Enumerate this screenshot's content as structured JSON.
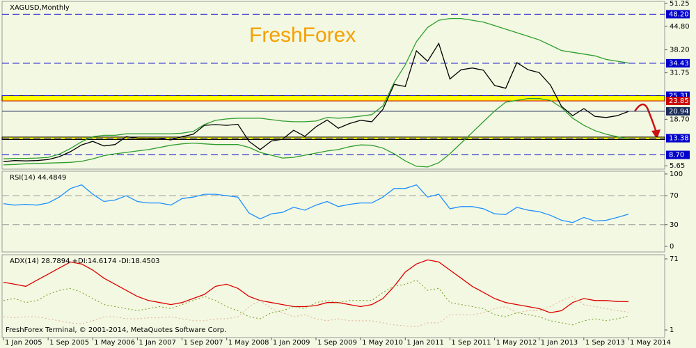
{
  "chart_data": [
    {
      "type": "line",
      "title": "XAGUSD,Monthly",
      "annotation": "FreshForex",
      "ylim": [
        4.7,
        51.8
      ],
      "yticks": [
        51.25,
        {
          "value": 44.8,
          "label": "44.80"
        },
        {
          "value": 38.2,
          "label": "38.20"
        },
        31.75,
        {
          "value": 18.7,
          "label": "18.70"
        },
        5.65
      ],
      "levels": [
        {
          "value": 48.2,
          "label": "48.20",
          "color": "#0000cc",
          "style": "dashed"
        },
        {
          "value": 34.43,
          "color": "#0000cc",
          "style": "dashed"
        },
        {
          "value": 25.31,
          "color": "#0000cc",
          "style": "dashed"
        },
        {
          "value": 23.85,
          "color": "#cc0000",
          "style": "solid"
        },
        {
          "value": 20.94,
          "color": "#1a2a5a",
          "style": "solid"
        },
        {
          "value": 13.38,
          "color": "#0000cc",
          "style": "dashed"
        },
        {
          "value": 8.7,
          "label": "8.70",
          "color": "#0000cc",
          "style": "dashed"
        }
      ],
      "bands": [
        [
          23.85,
          25.31
        ],
        [
          13.0,
          13.7
        ]
      ],
      "series": [
        {
          "color": "#000000",
          "style": "solid",
          "values": [
            6.8,
            7.1,
            7.0,
            7.1,
            7.4,
            8.2,
            9.6,
            11.5,
            12.5,
            11.2,
            11.6,
            13.8,
            13.4,
            13.3,
            13.3,
            12.9,
            13.8,
            14.5,
            17.0,
            17.2,
            17.0,
            17.3,
            12.5,
            10.2,
            12.6,
            13.1,
            15.6,
            13.9,
            16.6,
            18.5,
            16.2,
            17.5,
            18.4,
            18.0,
            21.5,
            28.5,
            27.9,
            37.9,
            35.0,
            40.0,
            30.0,
            32.6,
            33.1,
            32.5,
            28.2,
            27.4,
            34.6,
            32.6,
            31.8,
            28.3,
            22.3,
            19.7,
            21.7,
            19.5,
            19.2,
            19.7,
            20.9
          ]
        },
        {
          "color": "#2e9e2e",
          "style": "solid",
          "values": [
            7.6,
            7.7,
            7.7,
            7.8,
            8.0,
            8.9,
            10.5,
            12.4,
            13.8,
            14.2,
            14.2,
            14.6,
            14.6,
            14.6,
            14.6,
            14.6,
            14.8,
            15.3,
            17.2,
            18.4,
            18.8,
            19.0,
            19.0,
            19.0,
            18.6,
            18.2,
            18.0,
            18.0,
            18.2,
            19.2,
            19.0,
            19.2,
            19.6,
            20.0,
            22.5,
            29.0,
            34.0,
            40.5,
            44.5,
            46.5,
            47.0,
            47.0,
            46.5,
            46.0,
            45.0,
            44.0,
            43.0,
            42.0,
            41.0,
            39.5,
            38.0,
            37.5,
            37.0,
            36.5,
            35.5,
            35.0,
            34.5
          ]
        },
        {
          "color": "#2e9e2e",
          "style": "solid",
          "values": [
            5.9,
            6.0,
            6.2,
            6.3,
            6.4,
            6.5,
            6.6,
            6.9,
            7.6,
            8.5,
            9.0,
            9.4,
            9.8,
            10.2,
            10.8,
            11.4,
            11.8,
            12.0,
            11.8,
            11.6,
            11.6,
            11.6,
            10.8,
            9.4,
            8.6,
            7.8,
            8.0,
            8.6,
            9.2,
            9.8,
            10.2,
            11.0,
            11.5,
            11.4,
            10.6,
            9.0,
            7.0,
            5.5,
            5.3,
            6.5,
            9.0,
            12.0,
            15.0,
            18.0,
            21.0,
            23.5,
            24.0,
            24.5,
            24.5,
            24.0,
            22.0,
            19.0,
            17.0,
            15.5,
            14.5,
            13.8,
            13.2
          ]
        }
      ]
    },
    {
      "type": "line",
      "title": "RSI(14) 44.4849",
      "ylim": [
        -7.7,
        103.8
      ],
      "yticks": [
        100,
        70,
        30,
        0
      ],
      "levels": [
        {
          "value": 70,
          "color": "#999999",
          "style": "dashed"
        },
        {
          "value": 30,
          "color": "#999999",
          "style": "dashed"
        }
      ],
      "series": [
        {
          "color": "#1e90ff",
          "style": "solid",
          "values": [
            59,
            57,
            58,
            57,
            60,
            68,
            80,
            85,
            72,
            62,
            64,
            70,
            62,
            60,
            60,
            57,
            66,
            68,
            72,
            72,
            70,
            68,
            46,
            38,
            45,
            47,
            54,
            50,
            57,
            62,
            55,
            58,
            60,
            60,
            68,
            80,
            80,
            85,
            68,
            72,
            52,
            55,
            55,
            52,
            45,
            44,
            54,
            50,
            48,
            43,
            36,
            33,
            40,
            35,
            36,
            40,
            44.5
          ]
        }
      ]
    },
    {
      "type": "line",
      "title": "ADX(14) 28.7894 +DI:14.6174 -DI:18.4503",
      "footer": "FreshForex Terminal, © 2001-2014, MetaQuotes Software Corp.",
      "ylim": [
        -6.5,
        75.1
      ],
      "yticks": [
        71,
        1
      ],
      "categories": [
        "1 Jan 2005",
        null,
        null,
        null,
        "1 Sep 2005",
        null,
        null,
        null,
        "1 May 2006",
        null,
        null,
        null,
        "1 Jan 2007",
        null,
        null,
        null,
        "1 Sep 2007",
        null,
        null,
        null,
        "1 May 2008",
        null,
        null,
        null,
        "1 Jan 2009",
        null,
        null,
        null,
        "1 Sep 2009",
        null,
        null,
        null,
        "1 May 2010",
        null,
        null,
        null,
        "1 Jan 2011",
        null,
        null,
        null,
        "1 Sep 2011",
        null,
        null,
        null,
        "1 May 2012",
        null,
        null,
        null,
        "1 Jan 2013",
        null,
        null,
        null,
        "1 Sep 2013",
        null,
        null,
        null,
        "1 May 2014"
      ],
      "series": [
        {
          "color": "#dd0000",
          "style": "solid",
          "values": [
            48,
            46,
            44,
            50,
            56,
            62,
            68,
            66,
            60,
            52,
            46,
            40,
            34,
            30,
            28,
            26,
            28,
            32,
            36,
            44,
            46,
            42,
            34,
            30,
            28,
            26,
            24,
            24,
            25,
            28,
            28,
            26,
            24,
            26,
            32,
            44,
            58,
            66,
            70,
            68,
            60,
            52,
            44,
            38,
            32,
            28,
            26,
            24,
            22,
            18,
            20,
            28,
            32,
            30,
            30,
            29,
            28.8
          ]
        },
        {
          "color": "#6b9e1e",
          "style": "dotted",
          "values": [
            30,
            32,
            28,
            30,
            36,
            40,
            42,
            38,
            32,
            26,
            24,
            22,
            20,
            22,
            24,
            22,
            26,
            30,
            34,
            30,
            24,
            20,
            14,
            12,
            18,
            20,
            24,
            22,
            28,
            30,
            28,
            30,
            30,
            30,
            38,
            44,
            46,
            50,
            40,
            42,
            28,
            26,
            24,
            22,
            16,
            14,
            18,
            16,
            14,
            10,
            8,
            6,
            10,
            12,
            10,
            12,
            14.6
          ]
        },
        {
          "color": "#e0b090",
          "style": "dotted",
          "values": [
            14,
            13,
            14,
            14,
            12,
            10,
            8,
            7,
            10,
            14,
            14,
            12,
            12,
            13,
            13,
            14,
            12,
            10,
            10,
            12,
            12,
            14,
            24,
            30,
            22,
            18,
            14,
            16,
            12,
            10,
            12,
            10,
            10,
            10,
            8,
            6,
            5,
            4,
            8,
            8,
            16,
            16,
            16,
            18,
            22,
            24,
            18,
            20,
            20,
            24,
            30,
            34,
            26,
            24,
            22,
            20,
            18.5
          ]
        }
      ]
    }
  ]
}
